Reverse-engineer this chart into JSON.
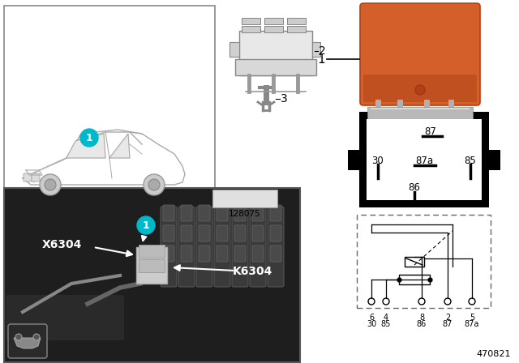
{
  "background": "#ffffff",
  "cyan_color": "#00b8c8",
  "orange_color": "#d45f2a",
  "doc_num": "470821",
  "part_num": "128075",
  "label_x": "X6304",
  "label_k": "K6304",
  "label_1": "1",
  "label_2": "2",
  "label_3": "3"
}
